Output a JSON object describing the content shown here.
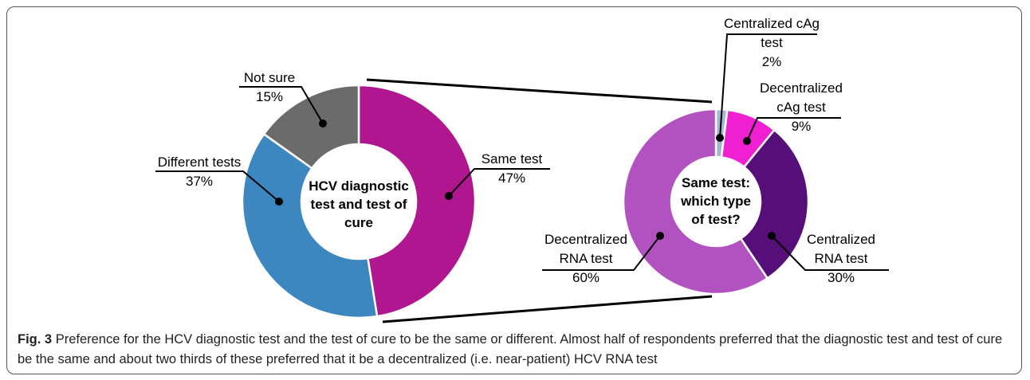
{
  "chart_data": [
    {
      "type": "pie",
      "donut": true,
      "center_label": "HCV diagnostic test and test of cure",
      "categories": [
        "Same test",
        "Different tests",
        "Not sure"
      ],
      "values": [
        47,
        37,
        15
      ],
      "value_labels": [
        "47%",
        "37%",
        "15%"
      ],
      "colors": [
        "#b0168f",
        "#3d87c0",
        "#6b6b6b"
      ]
    },
    {
      "type": "pie",
      "donut": true,
      "center_label": "Same test: which type of test?",
      "categories": [
        "Centralized cAg test",
        "Decentralized cAg test",
        "Centralized RNA test",
        "Decentralized RNA test"
      ],
      "values": [
        2,
        9,
        30,
        60
      ],
      "value_labels": [
        "2%",
        "9%",
        "30%",
        "60%"
      ],
      "colors": [
        "#a3b6d2",
        "#f01fd2",
        "#560f78",
        "#b152c0"
      ]
    }
  ],
  "caption": {
    "figure_label": "Fig. 3",
    "text": "Preference for the HCV diagnostic test and the test of cure to be the same or different. Almost half of respondents preferred that the diagnostic test and test of cure be the same and about two thirds of these preferred that it be a decentralized (i.e. near-patient) HCV RNA test"
  }
}
